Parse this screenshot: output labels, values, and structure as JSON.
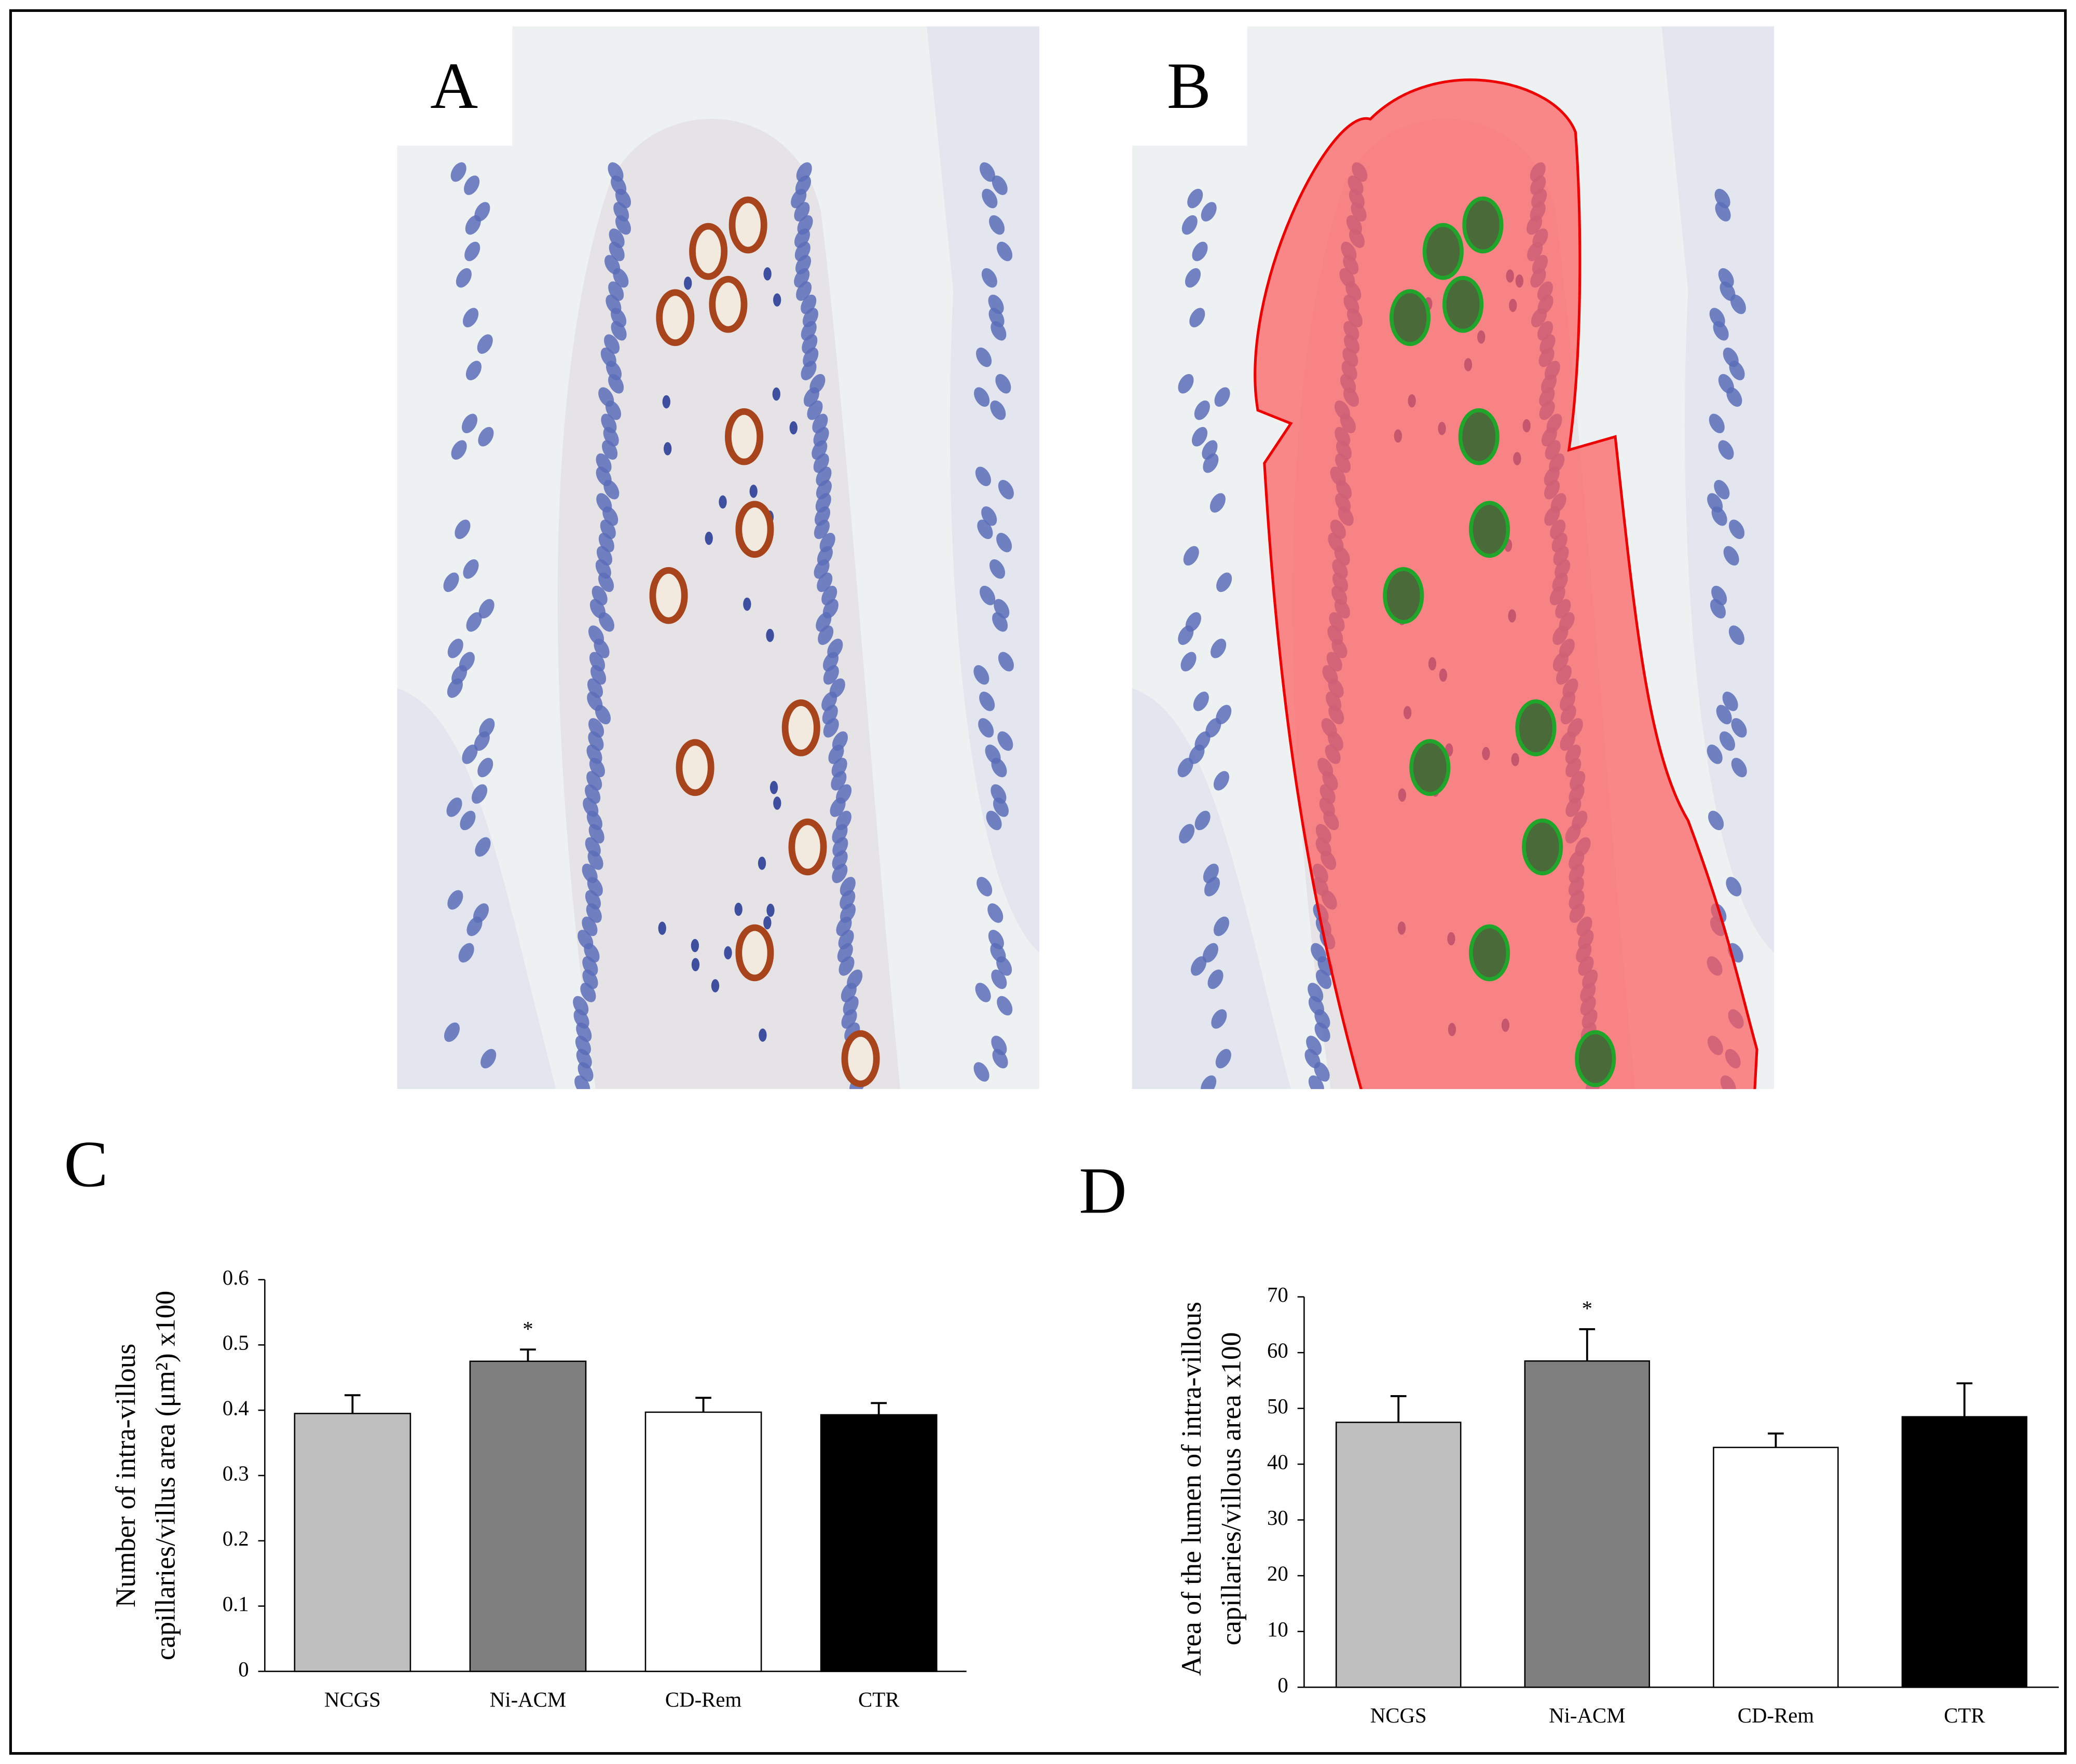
{
  "panels": [
    "A",
    "B"
  ],
  "chart_data": [
    {
      "type": "bar",
      "panel": "C",
      "y_label": [
        "Number of intra-villous",
        "capillaries/villus area (μm²) x100"
      ],
      "categories": [
        "NCGS",
        "Ni-ACM",
        "CD-Rem",
        "CTR"
      ],
      "values": [
        0.395,
        0.475,
        0.397,
        0.393
      ],
      "errors": [
        0.028,
        0.018,
        0.022,
        0.018
      ],
      "significance": [
        null,
        "*",
        null,
        null
      ],
      "colors": [
        "#bfbfbf",
        "#7f7f7f",
        "#ffffff",
        "#000000"
      ],
      "ylim": [
        0,
        0.6
      ],
      "yticks": [
        0,
        0.1,
        0.2,
        0.3,
        0.4,
        0.5,
        0.6
      ]
    },
    {
      "type": "bar",
      "panel": "D",
      "y_label": [
        "Area of the lumen of intra-villous",
        "capillaries/villous area x100"
      ],
      "categories": [
        "NCGS",
        "Ni-ACM",
        "CD-Rem",
        "CTR"
      ],
      "values": [
        47.5,
        58.5,
        43,
        48.5
      ],
      "errors": [
        4.7,
        5.7,
        2.5,
        6
      ],
      "significance": [
        null,
        "*",
        null,
        null
      ],
      "colors": [
        "#bfbfbf",
        "#7f7f7f",
        "#ffffff",
        "#000000"
      ],
      "ylim": [
        0,
        70
      ],
      "yticks": [
        0,
        10,
        20,
        30,
        40,
        50,
        60,
        70
      ]
    }
  ]
}
